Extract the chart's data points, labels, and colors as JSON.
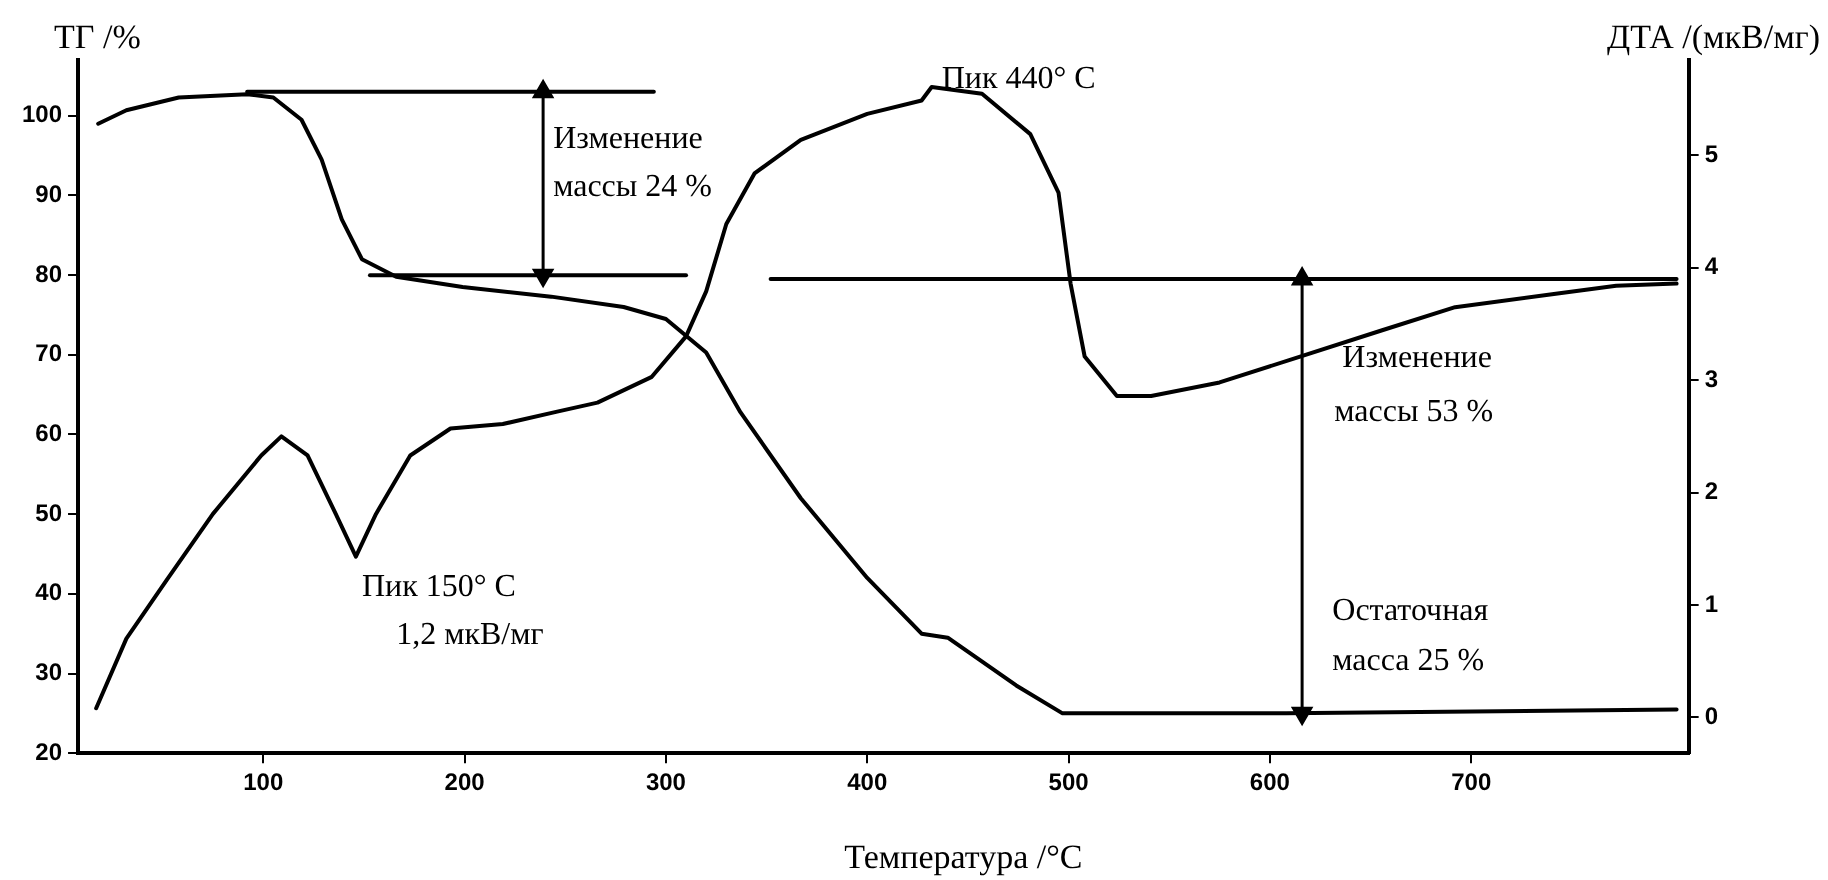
{
  "chart_data": {
    "type": "line",
    "xlabel": "Температура /°С",
    "ylabel": "ТГ /%",
    "y2label": "ДТА /(мкВ/мг)",
    "xlim": [
      8,
      808
    ],
    "xticks": [
      100,
      200,
      300,
      400,
      500,
      600,
      700
    ],
    "ylim": [
      20,
      107
    ],
    "yticks": [
      20,
      30,
      40,
      50,
      60,
      70,
      80,
      90,
      100
    ],
    "y2lim": [
      -0.32,
      5.85
    ],
    "y2ticks": [
      0,
      1,
      2,
      3,
      4,
      5
    ],
    "grid": false,
    "legend": false,
    "marker": "none",
    "line_style": "solid",
    "series": [
      {
        "color": "#000000",
        "x": [
          18,
          32,
          58,
          92,
          105,
          119,
          129,
          139,
          149,
          166,
          199,
          243,
          279,
          300,
          320,
          337,
          367,
          400,
          427,
          440,
          474,
          497,
          608,
          802
        ],
        "values": [
          99,
          100.7,
          102.3,
          102.7,
          102.3,
          99.5,
          94.5,
          87,
          82,
          79.8,
          78.5,
          77.3,
          76,
          74.5,
          70.3,
          62.8,
          52,
          42,
          35,
          34.5,
          28.5,
          25,
          25,
          25.5
        ]
      },
      {
        "color": "#000000",
        "axis": "y2",
        "x": [
          17,
          32,
          52,
          75,
          99,
          109,
          122,
          136,
          146,
          156,
          173,
          193,
          219,
          246,
          266,
          293,
          310,
          320,
          330,
          344,
          367,
          400,
          427,
          432,
          457,
          481,
          495,
          501,
          508,
          524,
          541,
          575,
          615,
          655,
          692,
          742,
          772,
          802
        ],
        "values": [
          0.08,
          0.7,
          1.22,
          1.81,
          2.33,
          2.5,
          2.33,
          1.81,
          1.43,
          1.81,
          2.33,
          2.57,
          2.61,
          2.72,
          2.8,
          3.03,
          3.39,
          3.79,
          4.39,
          4.84,
          5.14,
          5.37,
          5.49,
          5.61,
          5.55,
          5.19,
          4.67,
          3.86,
          3.21,
          2.86,
          2.86,
          2.98,
          3.21,
          3.44,
          3.65,
          3.77,
          3.84,
          3.86
        ]
      },
      {
        "color": "#000000",
        "x": [
          92,
          294
        ],
        "values": [
          103,
          103
        ]
      },
      {
        "color": "#000000",
        "x": [
          153,
          310
        ],
        "values": [
          80,
          80
        ]
      },
      {
        "color": "#000000",
        "x": [
          352,
          802
        ],
        "values": [
          79.5,
          79.5
        ]
      },
      {
        "color": "#000000",
        "marker": "triangle",
        "x": [
          239,
          239
        ],
        "values": [
          103,
          80
        ]
      },
      {
        "color": "#000000",
        "marker": "triangle",
        "x": [
          616,
          616
        ],
        "values": [
          79.5,
          25
        ]
      }
    ],
    "annotations": [
      "Изменение",
      "массы 24 %",
      "Пик 440° C",
      "Изменение",
      "массы 53 %",
      "Пик 150° C",
      "1,2 мкВ/мг",
      "Остаточная",
      "масса 25 %"
    ]
  }
}
